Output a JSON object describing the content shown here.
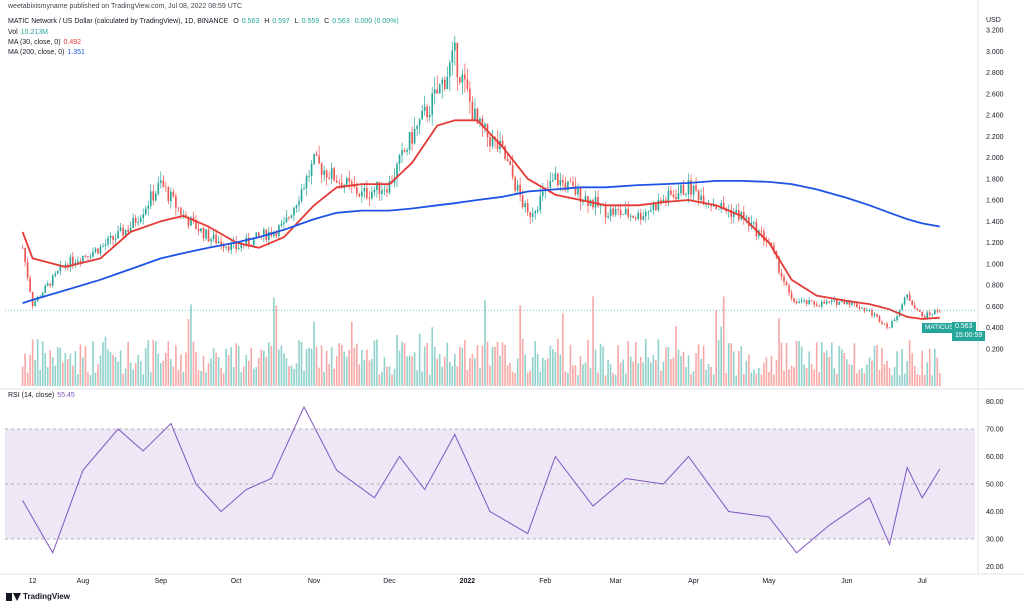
{
  "header": {
    "published": "weetabixismyname published on TradingView.com, Jul 08, 2022 08:59 UTC",
    "symbol": "MATIC Network / US Dollar (calculated by TradingView), 1D, BINANCE",
    "o_label": "O",
    "o_value": "0.563",
    "h_label": "H",
    "h_value": "0.597",
    "l_label": "L",
    "l_value": "0.559",
    "c_label": "C",
    "c_value": "0.563",
    "change": "0.000 (0.00%)",
    "vol_label": "Vol",
    "vol_value": "10.213M",
    "ma30_label": "MA (30, close, 0)",
    "ma30_value": "0.492",
    "ma200_label": "MA (200, close, 0)",
    "ma200_value": "1.351",
    "rsi_label": "RSI (14, close)",
    "rsi_value": "55.45"
  },
  "axis": {
    "currency": "USD",
    "price_ticks": [
      "3.200",
      "3.000",
      "2.800",
      "2.600",
      "2.400",
      "2.200",
      "2.000",
      "1.800",
      "1.600",
      "1.400",
      "1.200",
      "1.000",
      "0.800",
      "0.600",
      "0.400",
      "0.200"
    ],
    "rsi_ticks": [
      "80.00",
      "70.00",
      "60.00",
      "50.00",
      "40.00",
      "30.00",
      "20.00"
    ],
    "time_labels": [
      "12",
      "Aug",
      "Sep",
      "Oct",
      "Nov",
      "Dec",
      "2022",
      "Feb",
      "Mar",
      "Apr",
      "May",
      "Jun",
      "Jul"
    ]
  },
  "price_tag": {
    "symbol": "MATICUSD",
    "price": "0.563",
    "countdown": "15:00:59"
  },
  "footer": {
    "brand": "TradingView"
  },
  "colors": {
    "up": "#26a69a",
    "down": "#ef5350",
    "ma30": "#e53935",
    "ma200": "#1e53e5",
    "rsi": "#7e57c2",
    "rsi_band": "#ede7f6",
    "grid": "#f0f3fa"
  },
  "chart_data": [
    {
      "type": "line",
      "title": "MATIC Network / US Dollar (calculated by TradingView), 1D, BINANCE",
      "x": [
        "2021-07-08",
        "2021-07-12",
        "2021-07-25",
        "2021-08-08",
        "2021-08-20",
        "2021-09-01",
        "2021-09-10",
        "2021-09-20",
        "2021-10-01",
        "2021-10-10",
        "2021-10-20",
        "2021-11-01",
        "2021-11-10",
        "2021-11-20",
        "2021-12-01",
        "2021-12-10",
        "2021-12-20",
        "2021-12-27",
        "2022-01-05",
        "2022-01-15",
        "2022-01-25",
        "2022-02-05",
        "2022-02-15",
        "2022-02-25",
        "2022-03-10",
        "2022-03-20",
        "2022-03-30",
        "2022-04-10",
        "2022-04-20",
        "2022-05-01",
        "2022-05-10",
        "2022-05-20",
        "2022-06-01",
        "2022-06-10",
        "2022-06-18",
        "2022-06-25",
        "2022-07-01",
        "2022-07-08"
      ],
      "series": [
        {
          "name": "MATICUSD",
          "values": [
            1.15,
            0.62,
            1.0,
            1.15,
            1.35,
            1.75,
            1.45,
            1.25,
            1.15,
            1.25,
            1.35,
            1.95,
            1.8,
            1.65,
            1.75,
            2.2,
            2.6,
            2.95,
            2.3,
            2.05,
            1.45,
            1.8,
            1.65,
            1.5,
            1.45,
            1.6,
            1.72,
            1.55,
            1.45,
            1.2,
            0.65,
            0.62,
            0.65,
            0.55,
            0.4,
            0.7,
            0.5,
            0.563
          ]
        },
        {
          "name": "MA (30, close, 0)",
          "values": [
            1.3,
            1.05,
            0.97,
            1.05,
            1.3,
            1.4,
            1.45,
            1.35,
            1.2,
            1.15,
            1.25,
            1.55,
            1.72,
            1.75,
            1.75,
            1.95,
            2.3,
            2.35,
            2.35,
            2.1,
            1.8,
            1.65,
            1.6,
            1.55,
            1.55,
            1.58,
            1.6,
            1.55,
            1.45,
            1.2,
            0.85,
            0.7,
            0.65,
            0.62,
            0.57,
            0.5,
            0.48,
            0.492
          ]
        },
        {
          "name": "MA (200, close, 0)",
          "values": [
            0.63,
            0.66,
            0.75,
            0.85,
            0.95,
            1.05,
            1.1,
            1.15,
            1.2,
            1.25,
            1.32,
            1.42,
            1.48,
            1.5,
            1.5,
            1.52,
            1.55,
            1.57,
            1.6,
            1.63,
            1.68,
            1.7,
            1.72,
            1.72,
            1.74,
            1.75,
            1.76,
            1.78,
            1.78,
            1.77,
            1.75,
            1.7,
            1.62,
            1.55,
            1.48,
            1.42,
            1.38,
            1.351
          ]
        }
      ],
      "ylim": [
        0.0,
        3.2
      ],
      "grid": false
    },
    {
      "type": "line",
      "title": "RSI (14, close)",
      "x": [
        "2021-07-08",
        "2021-07-20",
        "2021-08-01",
        "2021-08-15",
        "2021-08-25",
        "2021-09-05",
        "2021-09-15",
        "2021-09-25",
        "2021-10-05",
        "2021-10-15",
        "2021-10-28",
        "2021-11-10",
        "2021-11-25",
        "2021-12-05",
        "2021-12-15",
        "2021-12-27",
        "2022-01-10",
        "2022-01-25",
        "2022-02-05",
        "2022-02-20",
        "2022-03-05",
        "2022-03-20",
        "2022-03-30",
        "2022-04-15",
        "2022-05-01",
        "2022-05-12",
        "2022-05-25",
        "2022-06-10",
        "2022-06-18",
        "2022-06-25",
        "2022-07-01",
        "2022-07-08"
      ],
      "values": [
        44,
        25,
        55,
        70,
        62,
        72,
        50,
        40,
        48,
        52,
        78,
        55,
        45,
        60,
        48,
        68,
        40,
        32,
        60,
        42,
        52,
        50,
        60,
        40,
        38,
        25,
        35,
        45,
        28,
        56,
        45,
        55.45
      ],
      "ylim": [
        18,
        82
      ],
      "reference_lines": [
        30,
        50,
        70
      ]
    }
  ]
}
